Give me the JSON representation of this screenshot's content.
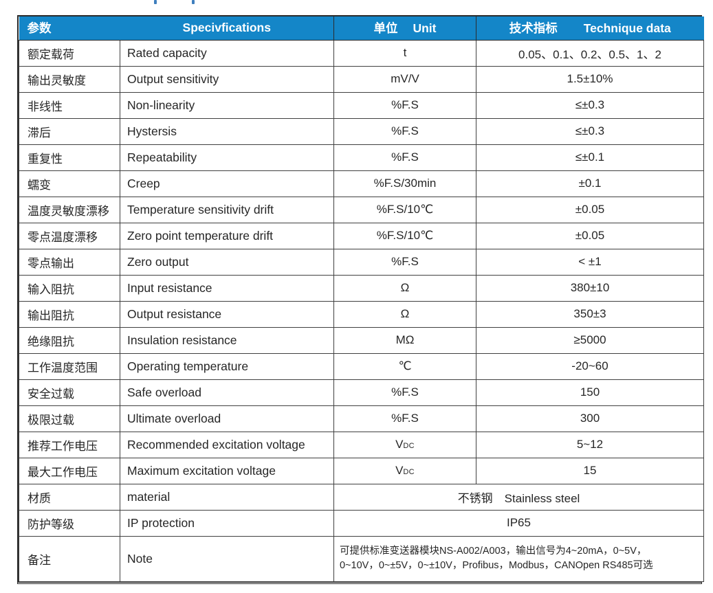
{
  "page": {
    "remnants": "cropped blue text descenders at top edge"
  },
  "colors": {
    "header_bg": "#1486C8",
    "header_text": "#FFFFFF",
    "border_dark": "#2B2B2B",
    "grid": "#3F3F3F",
    "body_text": "#262626"
  },
  "table": {
    "header": {
      "param": "参数",
      "spec": "Specivfications",
      "unit_cn": "单位",
      "unit_en": "Unit",
      "tech_cn": "技术指标",
      "tech_en": "Technique data"
    },
    "rows": [
      {
        "cn": "额定载荷",
        "en": "Rated capacity",
        "unit": "t",
        "value": "0.05、0.1、0.2、0.5、1、2"
      },
      {
        "cn": "输出灵敏度",
        "en": "Output sensitivity",
        "unit": "mV/V",
        "value": "1.5±10%"
      },
      {
        "cn": "非线性",
        "en": "Non-linearity",
        "unit": "%F.S",
        "value": "≤±0.3"
      },
      {
        "cn": "滞后",
        "en": "Hystersis",
        "unit": "%F.S",
        "value": "≤±0.3"
      },
      {
        "cn": "重复性",
        "en": "Repeatability",
        "unit": "%F.S",
        "value": "≤±0.1"
      },
      {
        "cn": "蠕变",
        "en": "Creep",
        "unit": "%F.S/30min",
        "value": "±0.1"
      },
      {
        "cn": "温度灵敏度漂移",
        "en": "Temperature sensitivity drift",
        "unit": "%F.S/10℃",
        "value": "±0.05"
      },
      {
        "cn": "零点温度漂移",
        "en": "Zero point temperature drift",
        "unit": "%F.S/10℃",
        "value": "±0.05"
      },
      {
        "cn": "零点输出",
        "en": "Zero output",
        "unit": "%F.S",
        "value": "< ±1"
      },
      {
        "cn": "输入阻抗",
        "en": "Input resistance",
        "unit": "Ω",
        "value": "380±10"
      },
      {
        "cn": "输出阻抗",
        "en": "Output resistance",
        "unit": "Ω",
        "value": "350±3"
      },
      {
        "cn": "绝缘阻抗",
        "en": "Insulation resistance",
        "unit": "MΩ",
        "value": "≥5000"
      },
      {
        "cn": "工作温度范围",
        "en": "Operating temperature",
        "unit": "℃",
        "value": "-20~60"
      },
      {
        "cn": "安全过载",
        "en": "Safe overload",
        "unit": "%F.S",
        "value": "150"
      },
      {
        "cn": "极限过载",
        "en": "Ultimate overload",
        "unit": "%F.S",
        "value": "300"
      },
      {
        "cn": "推荐工作电压",
        "en": "Recommended excitation voltage",
        "unit": {
          "main": "V",
          "sub": "DC"
        },
        "value": "5~12"
      },
      {
        "cn": "最大工作电压",
        "en": "Maximum excitation voltage",
        "unit": {
          "main": "V",
          "sub": "DC"
        },
        "value": "15"
      },
      {
        "cn": "材质",
        "en": "material",
        "merged": true,
        "value": "不锈钢　Stainless steel"
      },
      {
        "cn": "防护等级",
        "en": "IP protection",
        "merged": true,
        "value": "IP65"
      },
      {
        "cn": "备注",
        "en": "Note",
        "merged": true,
        "align": "left",
        "tall": true,
        "value_lines": [
          "可提供标准变送器模块NS-A002/A003，输出信号为4~20mA，0~5V，",
          "0~10V，0~±5V，0~±10V，Profibus，Modbus，CANOpen RS485可选"
        ]
      }
    ]
  }
}
